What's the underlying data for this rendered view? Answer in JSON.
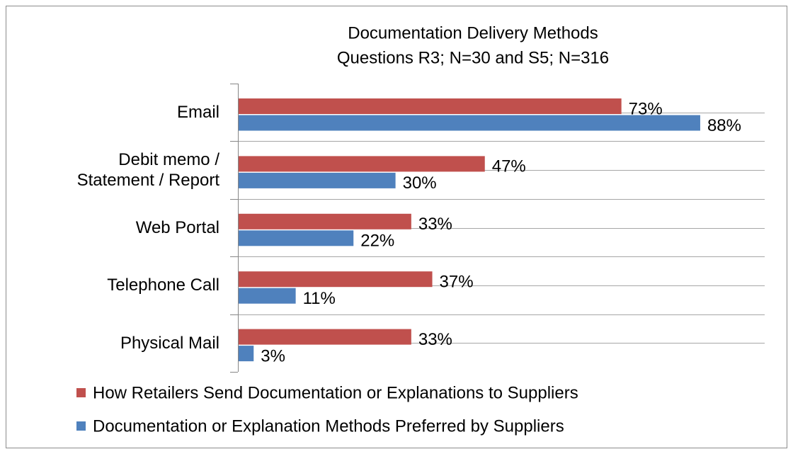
{
  "chart_data": {
    "type": "hbar",
    "title": "Documentation Delivery Methods",
    "subtitle": "Questions R3; N=30 and S5; N=316",
    "categories": [
      "Email",
      "Debit memo / Statement / Report",
      "Web Portal",
      "Telephone Call",
      "Physical Mail"
    ],
    "series": [
      {
        "name": "How Retailers Send Documentation or Explanations to Suppliers",
        "color": "#c0504d",
        "values": [
          73,
          47,
          33,
          37,
          33
        ],
        "value_labels": [
          "73%",
          "47%",
          "33%",
          "37%",
          "33%"
        ]
      },
      {
        "name": "Documentation or Explanation Methods Preferred by Suppliers",
        "color": "#4f81bd",
        "values": [
          88,
          30,
          22,
          11,
          3
        ],
        "value_labels": [
          "88%",
          "30%",
          "22%",
          "11%",
          "3%"
        ]
      }
    ],
    "xlim": [
      0,
      100
    ],
    "legend": "bottom"
  }
}
